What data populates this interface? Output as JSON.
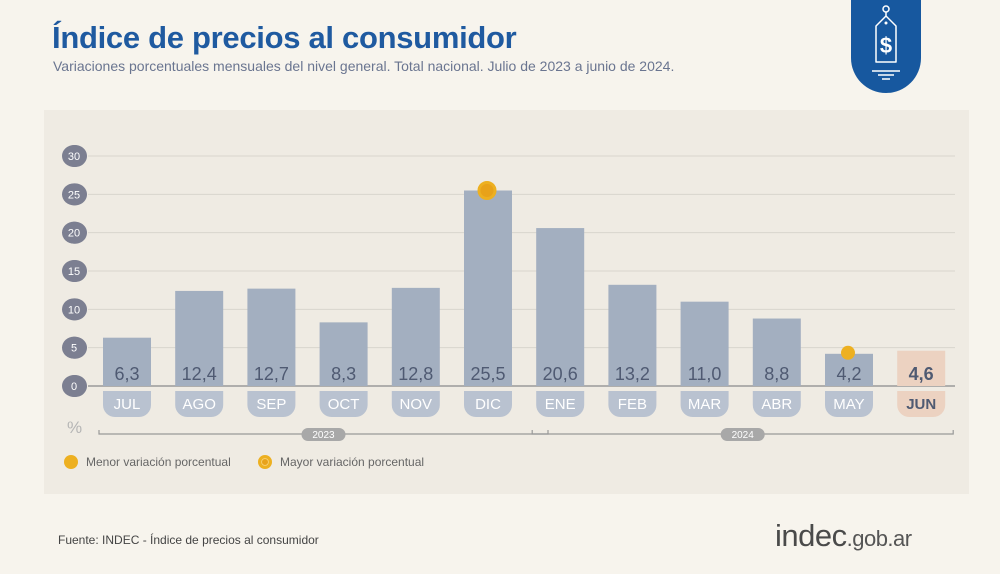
{
  "header": {
    "title": "Índice de precios al consumidor",
    "subtitle": "Variaciones porcentuales mensuales del nivel general. Total nacional. Julio de 2023 a junio de 2024."
  },
  "badge_icon": "price-tag-dollar-icon",
  "chart_data": {
    "type": "bar",
    "categories": [
      "JUL",
      "AGO",
      "SEP",
      "OCT",
      "NOV",
      "DIC",
      "ENE",
      "FEB",
      "MAR",
      "ABR",
      "MAY",
      "JUN"
    ],
    "values": [
      6.3,
      12.4,
      12.7,
      8.3,
      12.8,
      25.5,
      20.6,
      13.2,
      11.0,
      8.8,
      4.2,
      4.6
    ],
    "value_labels": [
      "6,3",
      "12,4",
      "12,7",
      "8,3",
      "12,8",
      "25,5",
      "20,6",
      "13,2",
      "11,0",
      "8,8",
      "4,2",
      "4,6"
    ],
    "ylim": [
      0,
      30
    ],
    "yticks": [
      0,
      5,
      10,
      15,
      20,
      25,
      30
    ],
    "ylabel": "%",
    "grid": true,
    "years": [
      {
        "label": "2023",
        "from": "JUL",
        "to": "DIC"
      },
      {
        "label": "2024",
        "from": "ENE",
        "to": "JUN"
      }
    ],
    "highlight": "JUN",
    "min_marker": "MAY",
    "max_marker": "DIC",
    "colors": {
      "bar": "#a3afc0",
      "highlight": "#ecd2c1",
      "marker": "#edb021",
      "label_bg": "#b9c2d0",
      "text": "#4f5a72"
    }
  },
  "legend": {
    "min": "Menor variación porcentual",
    "max": "Mayor variación porcentual"
  },
  "footer": {
    "source": "Fuente: INDEC - Índice de precios al consumidor",
    "logo_main": "indec",
    "logo_domain": ".gob.ar"
  }
}
